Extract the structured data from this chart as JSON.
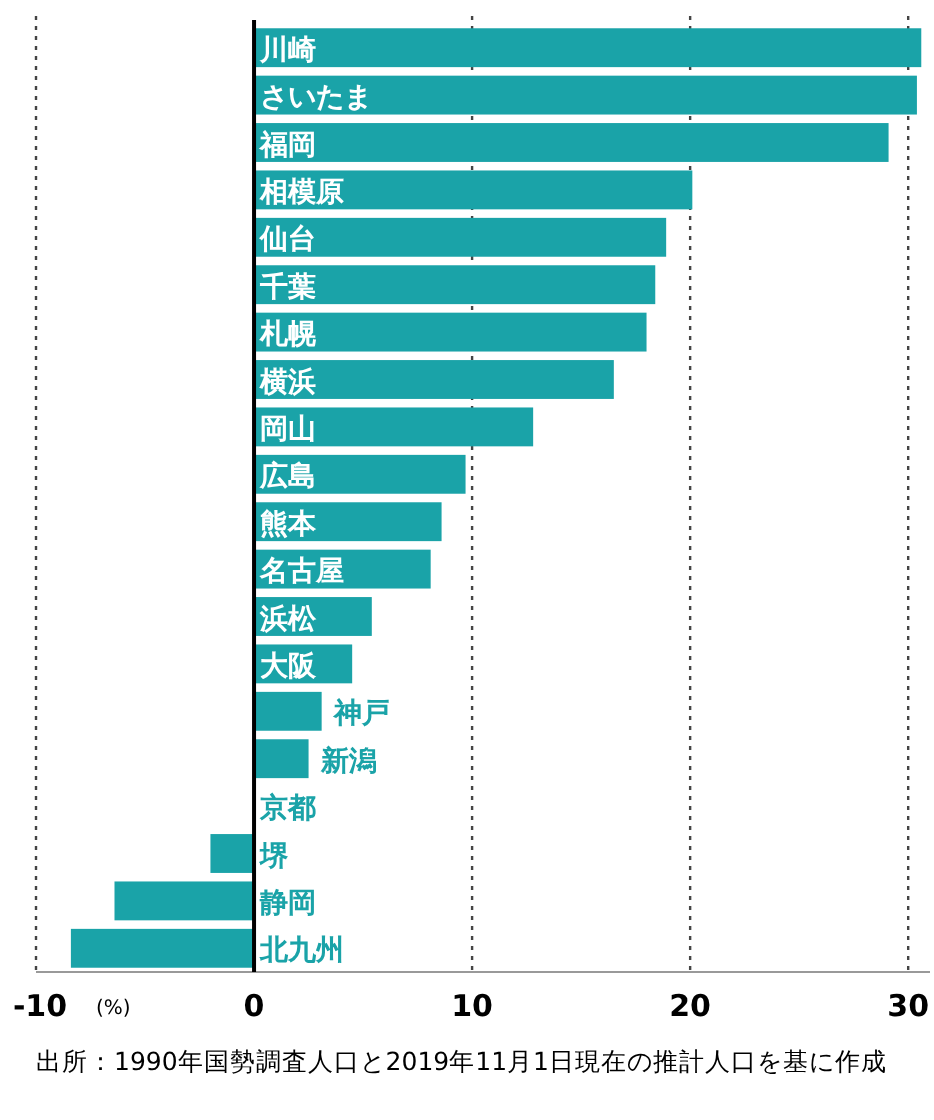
{
  "chart_data": {
    "type": "bar",
    "orientation": "horizontal",
    "categories": [
      "川崎",
      "さいたま",
      "福岡",
      "相模原",
      "仙台",
      "千葉",
      "札幌",
      "横浜",
      "岡山",
      "広島",
      "熊本",
      "名古屋",
      "浜松",
      "大阪",
      "神戸",
      "新潟",
      "京都",
      "堺",
      "静岡",
      "北九州"
    ],
    "values": [
      30.6,
      30.4,
      29.1,
      20.1,
      18.9,
      18.4,
      18.0,
      16.5,
      12.8,
      9.7,
      8.6,
      8.1,
      5.4,
      4.5,
      3.1,
      2.5,
      0,
      -2.0,
      -6.4,
      -8.4
    ],
    "color": "#1aa3a8",
    "xlim": [
      -10,
      31
    ],
    "xticks": [
      -10,
      0,
      10,
      20,
      30
    ],
    "xlabel": "(%)",
    "grid": "x",
    "annotations": [
      "出所：1990年国勢調査人口と2019年11月1日現在の推計人口を基に作成"
    ]
  }
}
